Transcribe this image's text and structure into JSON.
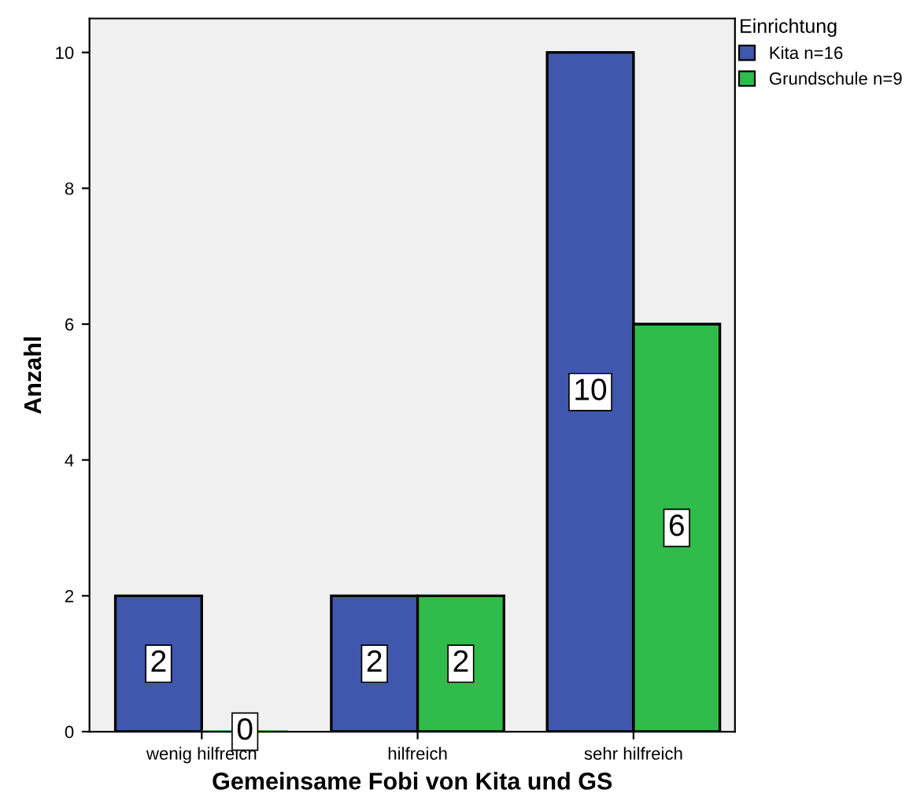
{
  "chart_data": {
    "type": "bar",
    "xlabel": "Gemeinsame Fobi von Kita und GS",
    "ylabel": "Anzahl",
    "legend_title": "Einrichtung",
    "categories": [
      "wenig hilfreich",
      "hilfreich",
      "sehr hilfreich"
    ],
    "series": [
      {
        "name": "Kita n=16",
        "color": "#3f57ad",
        "values": [
          2,
          2,
          10
        ]
      },
      {
        "name": "Grundschule n=9",
        "color": "#2fbc4a",
        "values": [
          0,
          2,
          6
        ]
      }
    ],
    "ylim": [
      0,
      10.5
    ],
    "yticks": [
      0,
      2,
      4,
      6,
      8,
      10
    ],
    "grid": false,
    "legend": "top right",
    "data_labels": true
  }
}
